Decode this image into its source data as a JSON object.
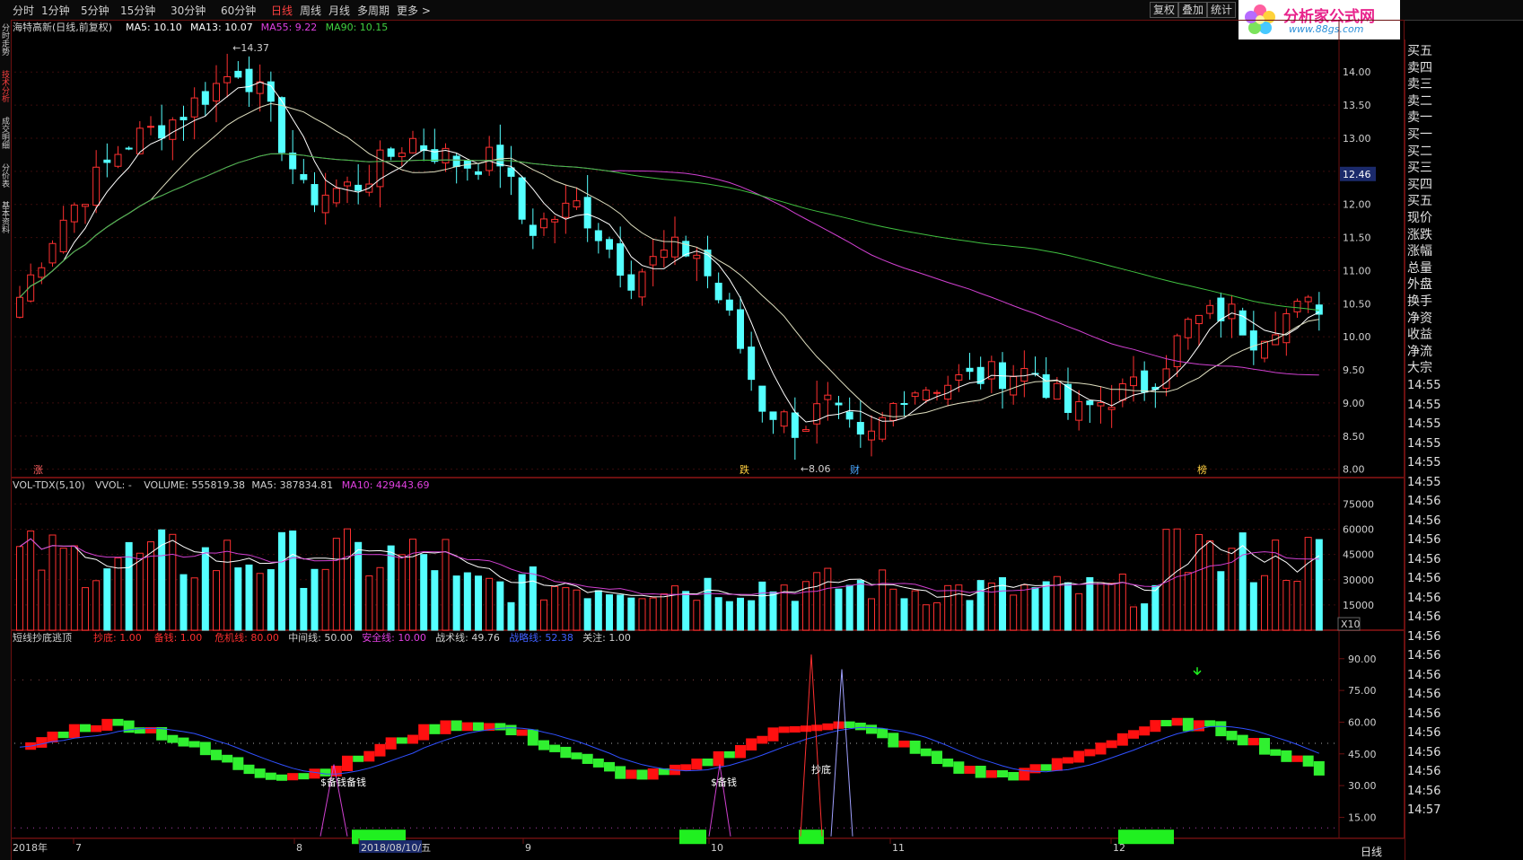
{
  "toolbar": {
    "periods": [
      "分时",
      "1分钟",
      "5分钟",
      "15分钟",
      "30分钟",
      "60分钟",
      "日线",
      "周线",
      "月线",
      "多周期",
      "更多 >"
    ],
    "active_period": "日线",
    "right_buttons": [
      "复权",
      "叠加",
      "统计"
    ]
  },
  "logo": {
    "name": "分析家公式网",
    "url": "www.88gs.com"
  },
  "left_tabs": [
    "分时走势",
    "技术分析",
    "成交明细",
    "分价表",
    "基本资料"
  ],
  "right_panel": {
    "rows": [
      "买五",
      "卖四",
      "卖三",
      "卖二",
      "卖一",
      "买一",
      "买二",
      "买三",
      "买四",
      "买五",
      "现价",
      "涨跌",
      "涨幅",
      "总量",
      "外盘",
      "换手",
      "净资",
      "收益",
      "净流",
      "大宗"
    ],
    "times": [
      "14:55",
      "14:55",
      "14:55",
      "14:55",
      "14:55",
      "14:55",
      "14:56",
      "14:56",
      "14:56",
      "14:56",
      "14:56",
      "14:56",
      "14:56",
      "14:56",
      "14:56",
      "14:56",
      "14:56",
      "14:56",
      "14:56",
      "14:56",
      "14:56",
      "14:56",
      "14:57"
    ],
    "bottom_label": "日线"
  },
  "price_panel": {
    "title": "海特高新(日线,前复权)",
    "ma": [
      {
        "label": "MA5: 10.10",
        "color": "#ffffff"
      },
      {
        "label": "MA13: 10.07",
        "color": "#ffffff"
      },
      {
        "label": "MA55: 9.22",
        "color": "#e040e0"
      },
      {
        "label": "MA90: 10.15",
        "color": "#40d040"
      }
    ],
    "y_ticks": [
      "14.00",
      "13.50",
      "13.00",
      "12.50",
      "12.00",
      "11.50",
      "11.00",
      "10.50",
      "10.00",
      "9.50",
      "9.00",
      "8.50",
      "8.00"
    ],
    "current_price": "12.46",
    "high_label": "14.37",
    "low_label": "8.06",
    "markers": [
      "涨",
      "跌",
      "财",
      "榜"
    ]
  },
  "volume_panel": {
    "title": "VOL-TDX(5,10)",
    "items": [
      {
        "label": "VVOL: -",
        "color": "#d0d0d0"
      },
      {
        "label": "VOLUME: 555819.38",
        "color": "#d0d0d0"
      },
      {
        "label": "MA5: 387834.81",
        "color": "#d0d0d0"
      },
      {
        "label": "MA10: 429443.69",
        "color": "#e040e0"
      }
    ],
    "y_ticks": [
      "75000",
      "60000",
      "45000",
      "30000",
      "15000"
    ],
    "unit": "X10"
  },
  "indicator_panel": {
    "title": "短线抄底逃顶",
    "items": [
      {
        "label": "抄底: 1.00",
        "color": "#ff3030"
      },
      {
        "label": "备钱: 1.00",
        "color": "#ff3030"
      },
      {
        "label": "危机线: 80.00",
        "color": "#ff3030"
      },
      {
        "label": "中间线: 50.00",
        "color": "#d0d0d0"
      },
      {
        "label": "安全线: 10.00",
        "color": "#e040e0"
      },
      {
        "label": "战术线: 49.76",
        "color": "#d0d0d0"
      },
      {
        "label": "战略线: 52.38",
        "color": "#4060ff"
      },
      {
        "label": "关注: 1.00",
        "color": "#d0d0d0"
      }
    ],
    "y_ticks": [
      "90.00",
      "75.00",
      "60.00",
      "45.00",
      "30.00",
      "15.00"
    ],
    "annotations": [
      "$备钱备钱",
      "$备钱",
      "抄底"
    ]
  },
  "date_axis": [
    "2018年",
    "7",
    "8",
    "2018/08/10/五",
    "9",
    "10",
    "11",
    "12"
  ],
  "chart_data": {
    "type": "candlestick",
    "y_range": [
      7.9,
      14.6
    ],
    "ma_levels": {
      "MA5": 10.1,
      "MA13": 10.07,
      "MA55": 9.22,
      "MA90": 10.15
    },
    "max_price": 14.37,
    "min_price": 8.06,
    "volume_range": [
      0,
      80000
    ],
    "indicator_range": [
      5,
      95
    ]
  }
}
